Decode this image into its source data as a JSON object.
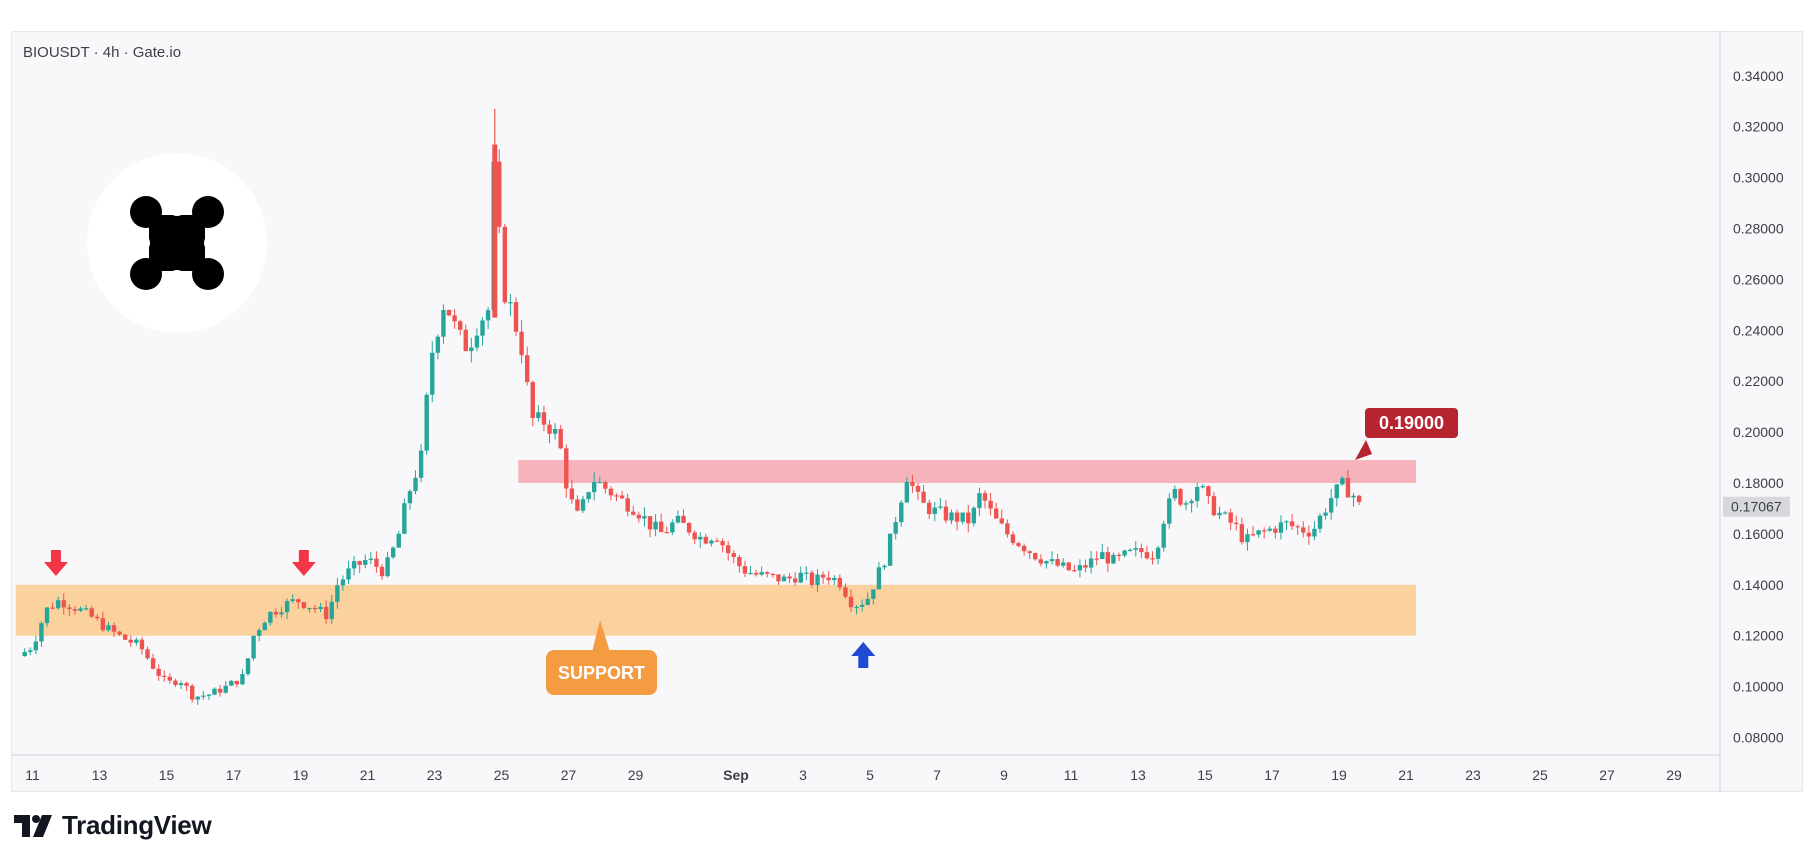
{
  "header": {
    "symbol_line": "BIOUSDT · 4h · Gate.io"
  },
  "brand": {
    "name": "TradingView",
    "logo_icon": "tradingview-logo-icon"
  },
  "token_logo": {
    "icon": "bio-protocol-logo-icon"
  },
  "colors": {
    "up": "#26a69a",
    "down": "#ef5350",
    "resistance_zone": "#f7b3bb",
    "support_zone": "#fbd29d",
    "support_label_bg": "#f59b42",
    "price_label_bg": "#b62430",
    "marker_down": "#f23645",
    "marker_up": "#1e4bd2",
    "current_price_bg": "#d6d8de"
  },
  "annotations": {
    "resistance_label": "0.19000",
    "support_label": "SUPPORT",
    "current_price_label": "0.17067"
  },
  "chart_data": {
    "type": "candlestick",
    "title": "BIOUSDT · 4h · Gate.io",
    "timeframe": "4h",
    "ylim": [
      0.07,
      0.35
    ],
    "y_ticks": [
      0.08,
      0.1,
      0.12,
      0.14,
      0.16,
      0.18,
      0.2,
      0.22,
      0.24,
      0.26,
      0.28,
      0.3,
      0.32,
      0.34
    ],
    "y_tick_labels": [
      "0.08000",
      "0.10000",
      "0.12000",
      "0.14000",
      "0.16000",
      "0.18000",
      "0.20000",
      "0.22000",
      "0.24000",
      "0.26000",
      "0.28000",
      "0.30000",
      "0.32000",
      "0.34000"
    ],
    "x_ticks": [
      {
        "day": 11,
        "label": "11"
      },
      {
        "day": 13,
        "label": "13"
      },
      {
        "day": 15,
        "label": "15"
      },
      {
        "day": 17,
        "label": "17"
      },
      {
        "day": 19,
        "label": "19"
      },
      {
        "day": 21,
        "label": "21"
      },
      {
        "day": 23,
        "label": "23"
      },
      {
        "day": 25,
        "label": "25"
      },
      {
        "day": 27,
        "label": "27"
      },
      {
        "day": 29,
        "label": "29"
      },
      {
        "day": 32,
        "label": "Sep",
        "bold": true
      },
      {
        "day": 34,
        "label": "3"
      },
      {
        "day": 36,
        "label": "5"
      },
      {
        "day": 38,
        "label": "7"
      },
      {
        "day": 40,
        "label": "9"
      },
      {
        "day": 42,
        "label": "11"
      },
      {
        "day": 44,
        "label": "13"
      },
      {
        "day": 46,
        "label": "15"
      },
      {
        "day": 48,
        "label": "17"
      },
      {
        "day": 50,
        "label": "19"
      },
      {
        "day": 52,
        "label": "21"
      },
      {
        "day": 54,
        "label": "23"
      },
      {
        "day": 56,
        "label": "25"
      },
      {
        "day": 58,
        "label": "27"
      },
      {
        "day": 60,
        "label": "29"
      }
    ],
    "series": [
      {
        "type": "ohlc_anchors",
        "comment": "close-price path (day index, price) traced from the chart; candles are generated along it",
        "close_path": [
          [
            10.6,
            0.112
          ],
          [
            11.0,
            0.116
          ],
          [
            11.4,
            0.13
          ],
          [
            11.8,
            0.134
          ],
          [
            12.3,
            0.131
          ],
          [
            12.8,
            0.127
          ],
          [
            13.2,
            0.123
          ],
          [
            13.7,
            0.119
          ],
          [
            14.2,
            0.116
          ],
          [
            14.6,
            0.108
          ],
          [
            15.0,
            0.101
          ],
          [
            15.4,
            0.103
          ],
          [
            15.8,
            0.096
          ],
          [
            16.3,
            0.097
          ],
          [
            16.8,
            0.1
          ],
          [
            17.3,
            0.104
          ],
          [
            17.6,
            0.12
          ],
          [
            18.0,
            0.128
          ],
          [
            18.5,
            0.132
          ],
          [
            18.9,
            0.134
          ],
          [
            19.4,
            0.131
          ],
          [
            19.8,
            0.128
          ],
          [
            20.1,
            0.14
          ],
          [
            20.5,
            0.146
          ],
          [
            21.0,
            0.15
          ],
          [
            21.5,
            0.145
          ],
          [
            21.9,
            0.158
          ],
          [
            22.2,
            0.175
          ],
          [
            22.6,
            0.19
          ],
          [
            22.9,
            0.23
          ],
          [
            23.3,
            0.252
          ],
          [
            23.7,
            0.238
          ],
          [
            24.0,
            0.233
          ],
          [
            24.3,
            0.243
          ],
          [
            24.6,
            0.248
          ],
          [
            24.8,
            0.313
          ],
          [
            25.0,
            0.258
          ],
          [
            25.3,
            0.248
          ],
          [
            25.6,
            0.233
          ],
          [
            25.9,
            0.205
          ],
          [
            26.3,
            0.204
          ],
          [
            26.7,
            0.198
          ],
          [
            27.0,
            0.175
          ],
          [
            27.3,
            0.166
          ],
          [
            27.7,
            0.182
          ],
          [
            28.1,
            0.178
          ],
          [
            28.6,
            0.173
          ],
          [
            29.0,
            0.17
          ],
          [
            29.4,
            0.164
          ],
          [
            29.8,
            0.16
          ],
          [
            30.2,
            0.165
          ],
          [
            30.6,
            0.162
          ],
          [
            31.0,
            0.158
          ],
          [
            31.4,
            0.16
          ],
          [
            31.8,
            0.152
          ],
          [
            32.2,
            0.146
          ],
          [
            32.6,
            0.144
          ],
          [
            33.0,
            0.143
          ],
          [
            33.5,
            0.142
          ],
          [
            33.9,
            0.144
          ],
          [
            34.3,
            0.141
          ],
          [
            34.7,
            0.144
          ],
          [
            35.1,
            0.141
          ],
          [
            35.5,
            0.132
          ],
          [
            35.9,
            0.134
          ],
          [
            36.2,
            0.143
          ],
          [
            36.5,
            0.152
          ],
          [
            36.8,
            0.168
          ],
          [
            37.1,
            0.183
          ],
          [
            37.5,
            0.172
          ],
          [
            37.9,
            0.169
          ],
          [
            38.3,
            0.167
          ],
          [
            38.7,
            0.166
          ],
          [
            39.0,
            0.165
          ],
          [
            39.3,
            0.176
          ],
          [
            39.7,
            0.166
          ],
          [
            40.1,
            0.16
          ],
          [
            40.5,
            0.156
          ],
          [
            40.9,
            0.152
          ],
          [
            41.3,
            0.149
          ],
          [
            41.7,
            0.147
          ],
          [
            42.1,
            0.145
          ],
          [
            42.5,
            0.148
          ],
          [
            42.9,
            0.152
          ],
          [
            43.3,
            0.149
          ],
          [
            43.7,
            0.152
          ],
          [
            44.1,
            0.153
          ],
          [
            44.5,
            0.152
          ],
          [
            44.8,
            0.168
          ],
          [
            45.1,
            0.176
          ],
          [
            45.4,
            0.172
          ],
          [
            45.8,
            0.18
          ],
          [
            46.1,
            0.172
          ],
          [
            46.5,
            0.167
          ],
          [
            46.9,
            0.163
          ],
          [
            47.2,
            0.157
          ],
          [
            47.6,
            0.16
          ],
          [
            48.0,
            0.162
          ],
          [
            48.4,
            0.164
          ],
          [
            48.8,
            0.162
          ],
          [
            49.2,
            0.161
          ],
          [
            49.5,
            0.168
          ],
          [
            49.8,
            0.175
          ],
          [
            50.1,
            0.179
          ],
          [
            50.4,
            0.176
          ],
          [
            50.6,
            0.171
          ]
        ]
      }
    ],
    "zones": [
      {
        "name": "resistance",
        "from": 0.18,
        "to": 0.189,
        "start_day": 25.5,
        "end_day": 52.3
      },
      {
        "name": "support",
        "from": 0.12,
        "to": 0.14,
        "start_day": 10.5,
        "end_day": 52.3
      }
    ],
    "markers": [
      {
        "type": "down-arrow",
        "day": 11.7
      },
      {
        "type": "down-arrow",
        "day": 19.1
      },
      {
        "type": "up-arrow",
        "day": 35.8
      }
    ],
    "current_price": 0.17067,
    "resistance_level": 0.19
  }
}
